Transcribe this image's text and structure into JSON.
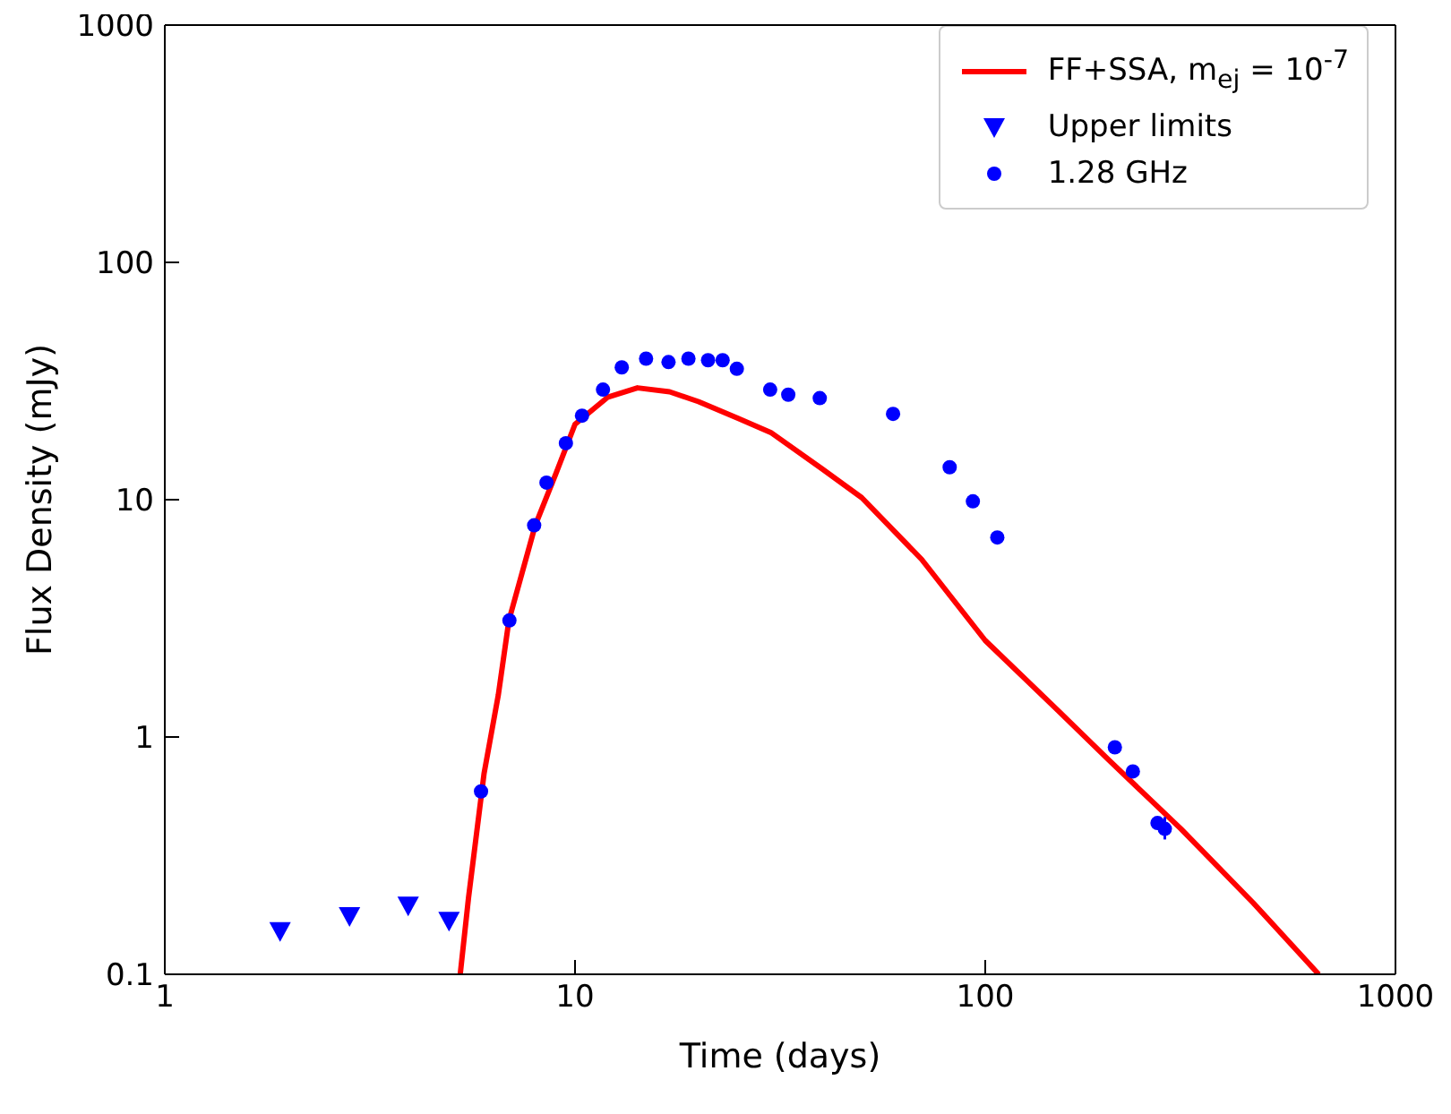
{
  "chart_data": {
    "type": "scatter",
    "xlabel": "Time (days)",
    "ylabel": "Flux Density (mJy)",
    "log": "xy",
    "xlim": [
      1,
      1000
    ],
    "ylim": [
      0.1,
      1000
    ],
    "xticks": [
      1,
      10,
      100,
      1000
    ],
    "yticks": [
      0.1,
      1,
      10,
      100,
      1000
    ],
    "legend": "top right",
    "series": [
      {
        "name": "FF+SSA, m$_{ej}$ = 10$^{-7}$",
        "type": "line",
        "color": "#ff0000",
        "marker": "none",
        "line_style": "solid",
        "x": [
          5.25,
          5.5,
          6.0,
          6.5,
          6.9,
          8.0,
          9.0,
          10,
          12,
          14.2,
          17,
          20,
          25,
          30,
          40,
          50,
          70,
          100,
          150,
          200,
          300,
          450,
          650
        ],
        "values": [
          0.1,
          0.21,
          0.7,
          1.5,
          3.1,
          7.8,
          13,
          20.8,
          27,
          29.6,
          28.5,
          25.9,
          22,
          19.2,
          13.5,
          10.2,
          5.6,
          2.55,
          1.3,
          0.8,
          0.41,
          0.2,
          0.1
        ]
      },
      {
        "name": "Upper limits",
        "color": "#0000ff",
        "marker": "triangle",
        "x": [
          1.91,
          2.82,
          3.92,
          4.93
        ],
        "values": [
          0.152,
          0.176,
          0.195,
          0.168
        ]
      },
      {
        "name": "1.28 GHz",
        "color": "#0000ff",
        "marker": "circle",
        "x": [
          5.9,
          6.92,
          7.95,
          8.52,
          9.5,
          10.4,
          11.7,
          13.0,
          14.9,
          16.9,
          18.9,
          21.1,
          22.9,
          24.8,
          29.9,
          33.1,
          39.5,
          59.6,
          81.9,
          93.3,
          107,
          207,
          229,
          263,
          274
        ],
        "values": [
          0.59,
          3.1,
          7.8,
          11.8,
          17.3,
          22.6,
          29.1,
          36.1,
          39.3,
          38.0,
          39.3,
          38.7,
          38.7,
          35.6,
          29.1,
          27.7,
          26.8,
          23.0,
          13.7,
          9.84,
          6.93,
          0.905,
          0.716,
          0.434,
          0.41
        ],
        "errors": [
          null,
          null,
          null,
          null,
          null,
          null,
          null,
          null,
          null,
          null,
          null,
          null,
          null,
          null,
          null,
          null,
          null,
          null,
          null,
          null,
          null,
          null,
          null,
          null,
          [
            0.37,
            0.46
          ]
        ]
      }
    ]
  }
}
